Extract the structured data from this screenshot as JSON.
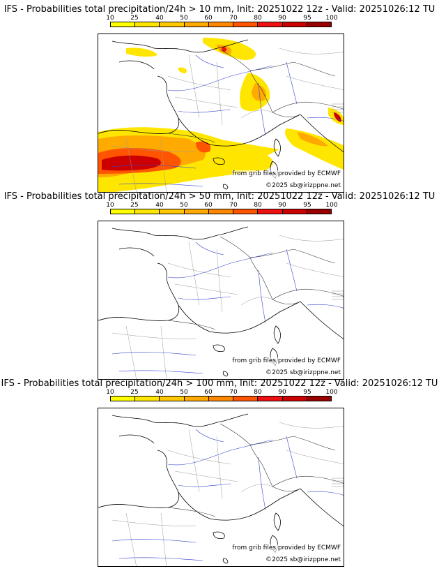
{
  "colorbar": {
    "ticks": [
      "10",
      "25",
      "40",
      "50",
      "60",
      "70",
      "80",
      "90",
      "95",
      "100"
    ],
    "colors": [
      "#ffff00",
      "#ffe600",
      "#ffc800",
      "#ffaa00",
      "#ff8800",
      "#ff5500",
      "#ee1111",
      "#cc0000",
      "#990000",
      "#660000"
    ]
  },
  "panels": [
    {
      "title": "IFS - Probabilities total precipitation/24h > 10 mm, Init: 20251022 12z - Valid: 20251026:12 TU",
      "source_note": "from grib files provided by ECMWF",
      "copyright": "©2025 sb@irizppne.net"
    },
    {
      "title": "IFS - Probabilities total precipitation/24h > 50 mm, Init: 20251022 12z - Valid: 20251026:12 TU",
      "source_note": "from grib files provided by ECMWF",
      "copyright": "©2025 sb@irizppne.net"
    },
    {
      "title": "IFS - Probabilities total precipitation/24h > 100 mm, Init: 20251022 12z - Valid: 20251026:12 TU",
      "source_note": "from grib files provided by ECMWF",
      "copyright": "©2025 sb@irizppne.net"
    }
  ]
}
